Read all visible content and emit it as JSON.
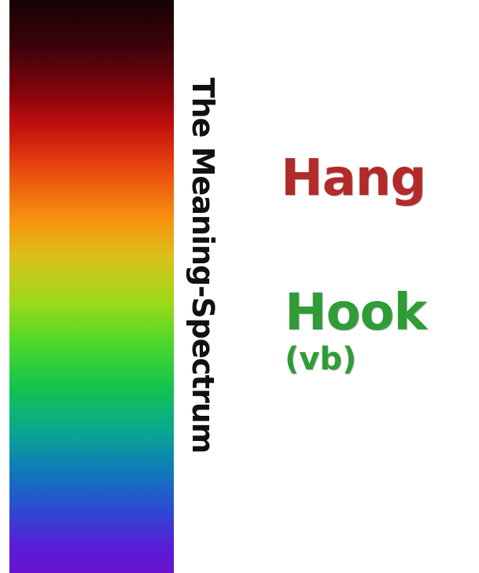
{
  "spectrum": {
    "title": "The Meaning-Spectrum"
  },
  "words": {
    "hang": {
      "text": "Hang",
      "color": "#b22a2a"
    },
    "hook": {
      "text": "Hook",
      "color": "#2f9c36"
    },
    "hook_pos": {
      "text": "(vb)",
      "color": "#2f9c36"
    }
  }
}
